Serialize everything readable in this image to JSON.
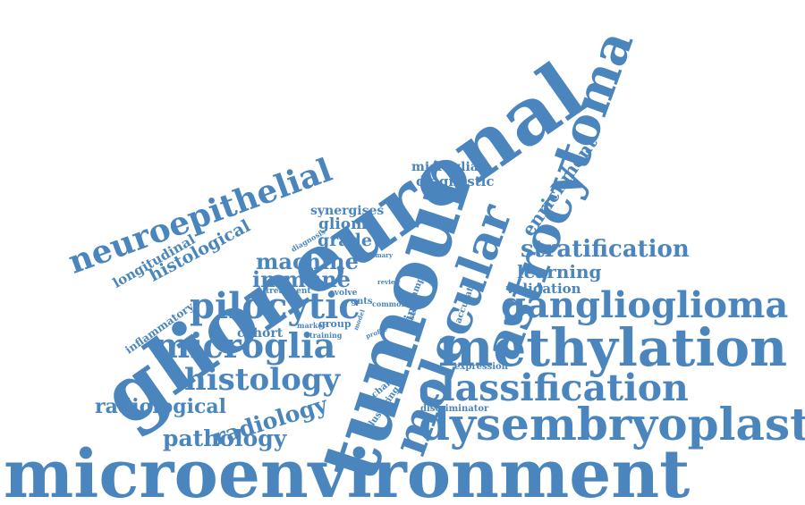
{
  "color": "#4a86bd",
  "background": "#ffffff",
  "words": {
    "microenvironment": "microenvironment",
    "tumour": "tumour",
    "glioneuronal": "glioneuronal",
    "astrocytoma": "astrocytoma",
    "methylation": "methylation",
    "molecular": "molecular",
    "dysembryoplastic": "dysembryoplastic",
    "ganglioglioma": "ganglioglioma",
    "classification": "classification",
    "neuroepithelial": "neuroepithelial",
    "pilocytic": "pilocytic",
    "microglia": "microglia",
    "histology": "histology",
    "stratification": "stratification",
    "enrichment": "enrichment",
    "pathology": "pathology",
    "radiology": "radiology",
    "radiological": "radiological",
    "histological": "histological",
    "machine": "machine",
    "immune": "immune",
    "learning": "learning",
    "validation": "validation",
    "longitudinal": "longitudinal",
    "glioma": "glioma",
    "synergises": "synergises",
    "grade": "grade",
    "diagnostic": "diagnostic",
    "microglial": "microglial",
    "inflammatory": "inflammatory",
    "cohort": "cohort",
    "expression": "expression",
    "discriminator": "discriminator",
    "clustering": "clustering",
    "change": "change",
    "accurate": "accurate",
    "based": "based",
    "time": "time",
    "sample": "sample",
    "common": "common",
    "gnts": "gnts",
    "evolve": "evolve",
    "treatment": "treatment",
    "review": "review",
    "primary": "primary",
    "diagnosis": "diagnosis",
    "group": "group",
    "marker": "marker",
    "training": "training",
    "model": "model",
    "profile": "profile"
  }
}
